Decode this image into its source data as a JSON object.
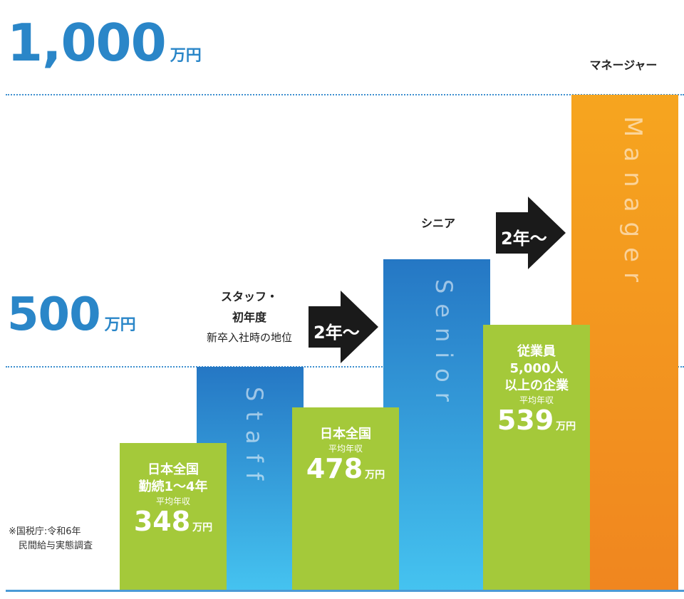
{
  "axis": {
    "top_value": "1,000",
    "top_unit": "万円",
    "mid_value": "500",
    "mid_unit": "万円"
  },
  "levels": {
    "staff_line1": "スタッフ・",
    "staff_line2": "初年度",
    "staff_line3": "新卒入社時の地位",
    "senior": "シニア",
    "manager": "マネージャー"
  },
  "bars": {
    "staff": "Staff",
    "senior": "Senior",
    "manager": "Manager"
  },
  "arrows": {
    "a1": "2年〜",
    "a2": "2年〜"
  },
  "compare": {
    "c1_line1": "日本全国",
    "c1_line2": "勤続1〜4年",
    "c1_sub": "平均年収",
    "c1_value": "348",
    "c1_unit": "万円",
    "c2_line1": "日本全国",
    "c2_sub": "平均年収",
    "c2_value": "478",
    "c2_unit": "万円",
    "c3_line1": "従業員",
    "c3_line2": "5,000人",
    "c3_line3": "以上の企業",
    "c3_sub": "平均年収",
    "c3_value": "539",
    "c3_unit": "万円"
  },
  "note": {
    "line1": "※国税庁:令和6年",
    "line2": "民間給与実態調査"
  },
  "chart_data": {
    "type": "bar",
    "categories": [
      "日本全国 勤続1〜4年 平均年収",
      "Staff",
      "日本全国 平均年収",
      "Senior",
      "従業員5,000人以上の企業 平均年収",
      "Manager"
    ],
    "values": [
      348,
      500,
      478,
      750,
      539,
      1000
    ],
    "ylim": [
      0,
      1000
    ],
    "yticks": [
      "500万円",
      "1,000万円"
    ],
    "colors": {
      "blue_top": "#2577c4",
      "blue_bottom": "#45c3f0",
      "green": "#a4c93a",
      "orange_top": "#f6a51f",
      "orange_bottom": "#f0861f",
      "axis": "#2a86c8"
    }
  }
}
